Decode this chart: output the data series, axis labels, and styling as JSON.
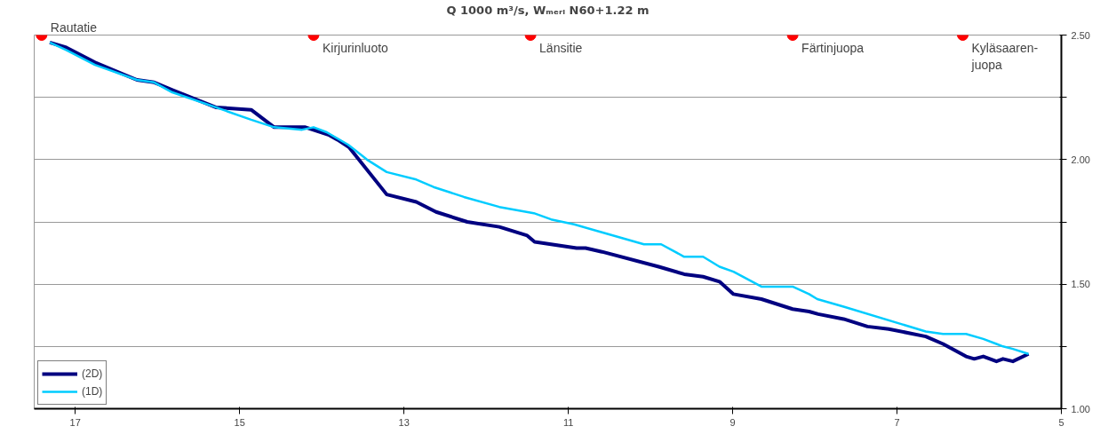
{
  "chart_data": {
    "type": "line",
    "title": "Q 1000 m³/s, Wₘₑᵣᵢ N60+1.22 m",
    "xlim": [
      17.5,
      5
    ],
    "xticks": [
      17,
      15,
      13,
      11,
      9,
      7,
      5
    ],
    "ylim": [
      1.0,
      2.5
    ],
    "yticks": [
      {
        "value": 1.0,
        "label": "1.00"
      },
      {
        "value": 1.25,
        "label": null
      },
      {
        "value": 1.5,
        "label": "1.50"
      },
      {
        "value": 1.75,
        "label": null
      },
      {
        "value": 2.0,
        "label": "2.00"
      },
      {
        "value": 2.25,
        "label": null
      },
      {
        "value": 2.5,
        "label": "2.50"
      }
    ],
    "grid": "y",
    "legend": "bottom left",
    "line_style": "solid",
    "marker": "none",
    "series": [
      {
        "name": "(2D)",
        "color": "#000080",
        "x": [
          17.31,
          17.11,
          16.76,
          16.25,
          16.04,
          15.82,
          15.29,
          14.86,
          14.58,
          14.2,
          13.92,
          13.81,
          13.67,
          13.21,
          12.85,
          12.61,
          12.23,
          11.84,
          11.5,
          11.41,
          10.9,
          10.79,
          10.59,
          9.9,
          9.59,
          9.36,
          9.16,
          8.99,
          8.65,
          8.27,
          8.07,
          7.96,
          7.65,
          7.36,
          7.1,
          6.65,
          6.44,
          6.16,
          6.06,
          5.95,
          5.79,
          5.71,
          5.59,
          5.4
        ],
        "values": [
          2.47,
          2.45,
          2.39,
          2.32,
          2.31,
          2.28,
          2.21,
          2.2,
          2.13,
          2.13,
          2.1,
          2.08,
          2.05,
          1.86,
          1.83,
          1.79,
          1.75,
          1.73,
          1.695,
          1.67,
          1.645,
          1.645,
          1.63,
          1.57,
          1.54,
          1.53,
          1.51,
          1.46,
          1.44,
          1.4,
          1.39,
          1.38,
          1.36,
          1.33,
          1.32,
          1.29,
          1.26,
          1.21,
          1.2,
          1.21,
          1.19,
          1.2,
          1.19,
          1.22
        ]
      },
      {
        "name": "(1D)",
        "color": "#00ccff",
        "x": [
          17.31,
          17.11,
          16.76,
          16.25,
          16.04,
          15.82,
          15.29,
          14.86,
          14.58,
          14.24,
          14.1,
          13.94,
          13.68,
          13.45,
          13.21,
          12.85,
          12.64,
          12.27,
          11.84,
          11.42,
          11.21,
          10.93,
          10.61,
          10.08,
          9.87,
          9.59,
          9.36,
          9.16,
          8.99,
          8.65,
          8.27,
          8.07,
          7.97,
          7.65,
          6.65,
          6.44,
          6.16,
          5.95,
          5.79,
          5.71,
          5.59,
          5.4
        ],
        "values": [
          2.47,
          2.44,
          2.38,
          2.32,
          2.31,
          2.27,
          2.21,
          2.16,
          2.13,
          2.12,
          2.13,
          2.11,
          2.06,
          2.0,
          1.95,
          1.92,
          1.89,
          1.85,
          1.81,
          1.785,
          1.76,
          1.74,
          1.71,
          1.66,
          1.66,
          1.61,
          1.61,
          1.57,
          1.55,
          1.49,
          1.49,
          1.46,
          1.44,
          1.41,
          1.31,
          1.3,
          1.3,
          1.28,
          1.26,
          1.25,
          1.24,
          1.22
        ]
      }
    ],
    "annotations": [
      {
        "text": "Rautatie",
        "x": 17.41,
        "y": 2.5
      },
      {
        "text": "Kirjurinluoto",
        "x": 14.1,
        "y": 2.5
      },
      {
        "text": "Länsitie",
        "x": 11.46,
        "y": 2.5
      },
      {
        "text": "Färtinjuopa",
        "x": 8.27,
        "y": 2.5
      },
      {
        "text": "Kyläsaaren-\njuopa",
        "x": 6.2,
        "y": 2.5
      }
    ]
  }
}
